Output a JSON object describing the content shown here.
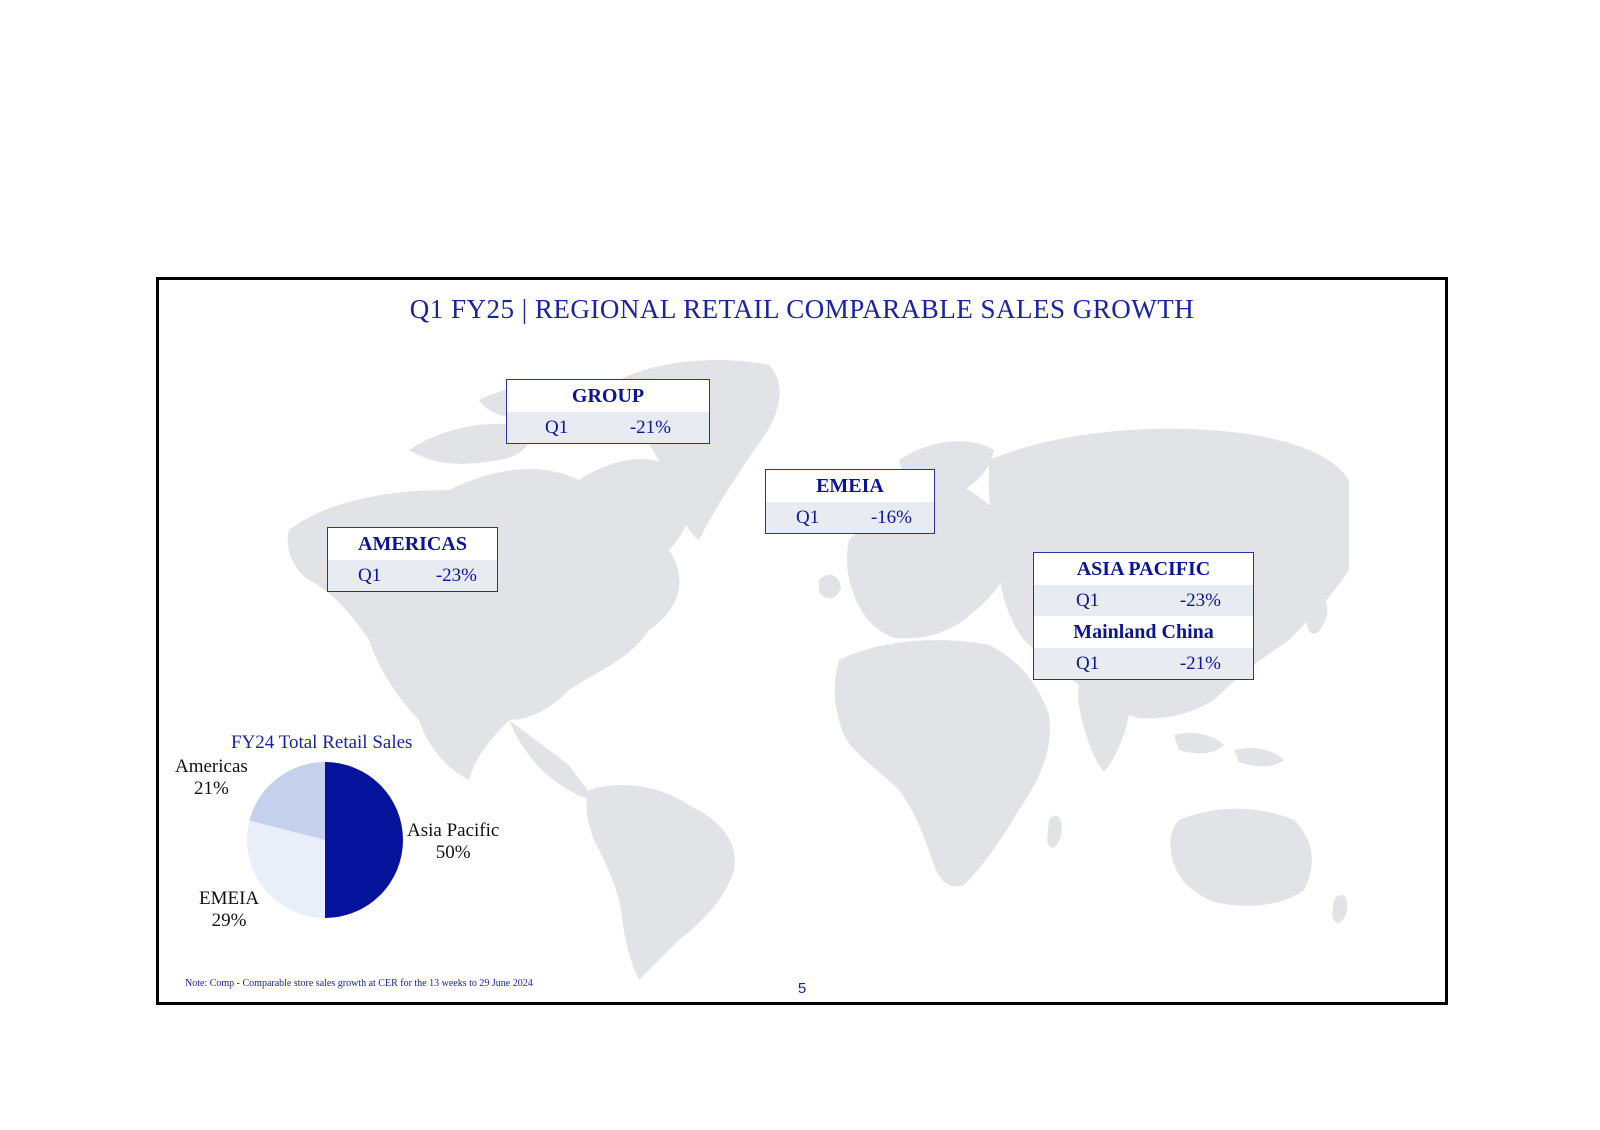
{
  "slide": {
    "title": "Q1 FY25 | REGIONAL RETAIL COMPARABLE SALES GROWTH",
    "note": "Note:   Comp - Comparable store sales growth at CER for the 13 weeks to 29 June 2024",
    "page_number": "5"
  },
  "regions": {
    "group": {
      "name": "GROUP",
      "period": "Q1",
      "value": "-21%"
    },
    "americas": {
      "name": "AMERICAS",
      "period": "Q1",
      "value": "-23%"
    },
    "emeia": {
      "name": "EMEIA",
      "period": "Q1",
      "value": "-16%"
    },
    "asia_pacific": {
      "name": "ASIA PACIFIC",
      "period": "Q1",
      "value": "-23%",
      "sub_name": "Mainland China",
      "sub_period": "Q1",
      "sub_value": "-21%"
    }
  },
  "colors": {
    "accent": "#1a22a6",
    "map": "#e1e3e6",
    "asia_pacific": "#05129c",
    "emeia": "#e9eef8",
    "americas": "#c5d1ec"
  },
  "chart_data": {
    "type": "pie",
    "title": "FY24 Total Retail Sales",
    "slices": [
      {
        "label": "Asia Pacific",
        "value": 50,
        "display": "50%"
      },
      {
        "label": "EMEIA",
        "value": 29,
        "display": "29%"
      },
      {
        "label": "Americas",
        "value": 21,
        "display": "21%"
      }
    ]
  }
}
